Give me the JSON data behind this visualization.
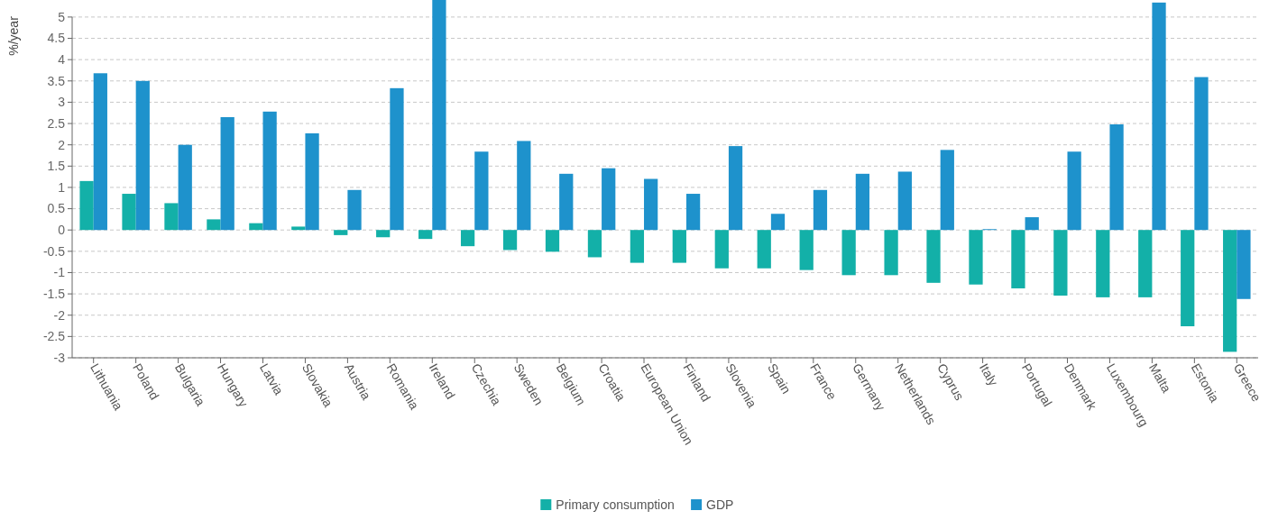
{
  "chart_data": {
    "type": "bar",
    "ylabel": "%/year",
    "categories": [
      "Lithuania",
      "Poland",
      "Bulgaria",
      "Hungary",
      "Latvia",
      "Slovakia",
      "Austria",
      "Romania",
      "Ireland",
      "Czechia",
      "Sweden",
      "Belgium",
      "Croatia",
      "European Union",
      "Finland",
      "Slovenia",
      "Spain",
      "France",
      "Germany",
      "Netherlands",
      "Cyprus",
      "Italy",
      "Portugal",
      "Denmark",
      "Luxembourg",
      "Malta",
      "Estonia",
      "Greece"
    ],
    "series": [
      {
        "name": "Primary consumption",
        "color": "#13b0a8",
        "values": [
          1.15,
          0.85,
          0.63,
          0.25,
          0.16,
          0.08,
          -0.12,
          -0.17,
          -0.21,
          -0.38,
          -0.47,
          -0.51,
          -0.64,
          -0.77,
          -0.77,
          -0.9,
          -0.9,
          -0.94,
          -1.06,
          -1.06,
          -1.24,
          -1.28,
          -1.37,
          -1.54,
          -1.58,
          -1.58,
          -2.26,
          -2.86
        ]
      },
      {
        "name": "GDP",
        "color": "#1e92cc",
        "values": [
          3.68,
          3.5,
          2.0,
          2.65,
          2.78,
          2.27,
          0.94,
          3.33,
          5.4,
          1.84,
          2.09,
          1.32,
          1.45,
          1.2,
          0.85,
          1.97,
          0.38,
          0.94,
          1.32,
          1.37,
          1.88,
          0.02,
          0.3,
          1.84,
          2.48,
          5.34,
          3.59,
          -1.62
        ]
      }
    ],
    "ylim": [
      -3,
      5.4
    ],
    "yticks": [
      -3,
      -2.5,
      -2,
      -1.5,
      -1,
      -0.5,
      0,
      0.5,
      1,
      1.5,
      2,
      2.5,
      3,
      3.5,
      4,
      4.5,
      5
    ],
    "grid": "y",
    "legend": "bottom"
  }
}
